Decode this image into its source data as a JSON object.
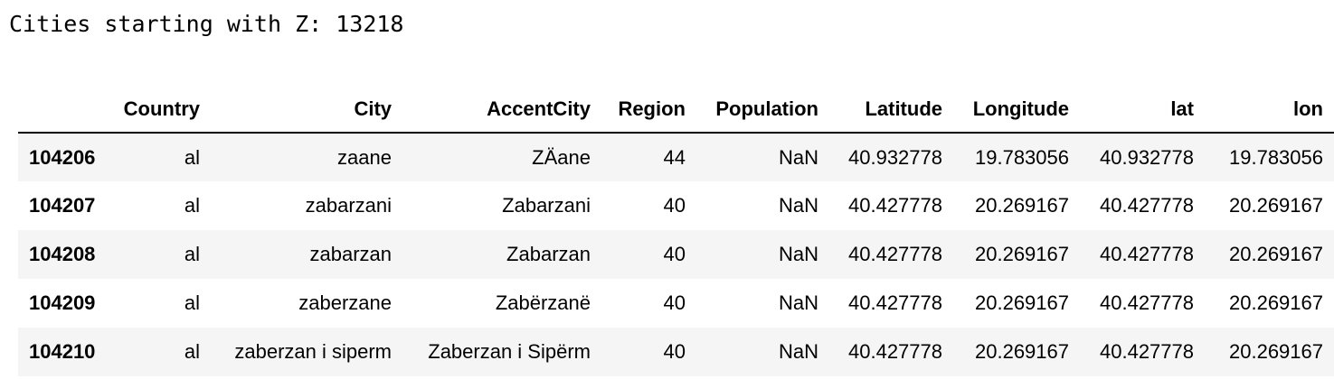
{
  "output": {
    "text": "Cities starting with Z: 13218"
  },
  "table": {
    "index_header": "",
    "columns": [
      "Country",
      "City",
      "AccentCity",
      "Region",
      "Population",
      "Latitude",
      "Longitude",
      "lat",
      "lon"
    ],
    "rows": [
      {
        "index": "104206",
        "cells": [
          "al",
          "zaane",
          "ZÄane",
          "44",
          "NaN",
          "40.932778",
          "19.783056",
          "40.932778",
          "19.783056"
        ]
      },
      {
        "index": "104207",
        "cells": [
          "al",
          "zabarzani",
          "Zabarzani",
          "40",
          "NaN",
          "40.427778",
          "20.269167",
          "40.427778",
          "20.269167"
        ]
      },
      {
        "index": "104208",
        "cells": [
          "al",
          "zabarzan",
          "Zabarzan",
          "40",
          "NaN",
          "40.427778",
          "20.269167",
          "40.427778",
          "20.269167"
        ]
      },
      {
        "index": "104209",
        "cells": [
          "al",
          "zaberzane",
          "Zabërzanë",
          "40",
          "NaN",
          "40.427778",
          "20.269167",
          "40.427778",
          "20.269167"
        ]
      },
      {
        "index": "104210",
        "cells": [
          "al",
          "zaberzan i siperm",
          "Zaberzan i Sipërm",
          "40",
          "NaN",
          "40.427778",
          "20.269167",
          "40.427778",
          "20.269167"
        ]
      }
    ]
  }
}
